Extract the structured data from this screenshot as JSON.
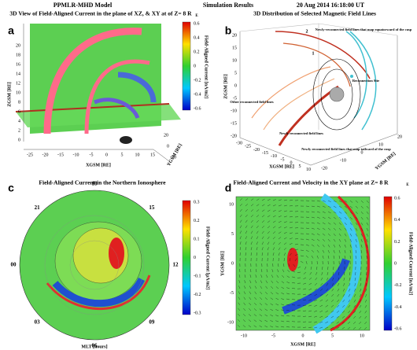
{
  "header": {
    "model": "PPMLR-MHD Model",
    "results": "Simulation Results",
    "time": "20 Aug 2014  16:18:00 UT"
  },
  "panel_a": {
    "label": "a",
    "title": "3D View of Field-Aligned Current in the plane of XZ, & XY at of Z= 8 R",
    "title_sub": "E",
    "z_label": "ZGSM [RE]",
    "x_label": "XGSM [RE]",
    "y_label": "YGSM [RE]",
    "z_ticks": [
      20,
      18,
      16,
      14,
      12,
      10,
      8,
      6,
      4,
      2,
      0
    ],
    "x_ticks": [
      -25,
      -20,
      -15,
      -10,
      -5,
      0,
      5,
      10,
      15
    ],
    "y_ticks": [
      20,
      0,
      -20
    ],
    "colorbar_label": "Field-Aligned Current [nA/m2]",
    "colorbar_ticks": [
      0.6,
      0.4,
      0.2,
      0,
      -0.2,
      -0.4,
      -0.6
    ]
  },
  "panel_b": {
    "label": "b",
    "title": "3D Distribution of Selected Magnetic Field Lines",
    "z_label": "ZGSM [RE]",
    "x_label": "XGSM [RE]",
    "y_label": "YGSM [RE]",
    "z_ticks": [
      20,
      15,
      10,
      5,
      0,
      -5,
      -10,
      -15,
      -20
    ],
    "x_ticks": [
      -30,
      -25,
      -20,
      -15,
      -10,
      -5,
      0,
      5,
      10
    ],
    "y_ticks": [
      -20,
      -10,
      0,
      10,
      20
    ],
    "annotations": [
      "Newly-reconnected field lines that map equatorward of the cusp",
      "Reconnection Site",
      "Other reconnected field lines",
      "Newly reconnected field lines",
      "Newly reconnected field lines that map tailward of the cusp"
    ],
    "line_markers": [
      "1",
      "2"
    ]
  },
  "panel_c": {
    "label": "c",
    "title": "Field-Aligned Current in the Northern Ionosphere",
    "mlt_labels": [
      "18",
      "15",
      "12",
      "09",
      "06",
      "03",
      "00",
      "21"
    ],
    "mlt_axis": "MLT [hours]",
    "colorbar_label": "Field-Aligned Current [μA/m2]",
    "colorbar_ticks": [
      0.3,
      0.2,
      0.1,
      0,
      -0.1,
      -0.2,
      -0.3
    ]
  },
  "panel_d": {
    "label": "d",
    "title": "Field-Aligned Current and Velocity in the XY plane at Z= 8 R",
    "title_sub": "E",
    "y_label": "YGSM [RE]",
    "x_label": "XGSM [RE]",
    "y_ticks": [
      10,
      5,
      0,
      -5,
      -10
    ],
    "x_ticks": [
      -10,
      -5,
      0,
      5,
      10
    ],
    "colorbar_label": "Field-Aligned Current [nA/m2]",
    "colorbar_ticks": [
      0.6,
      0.4,
      0.2,
      0,
      -0.2,
      -0.4,
      -0.6
    ]
  }
}
